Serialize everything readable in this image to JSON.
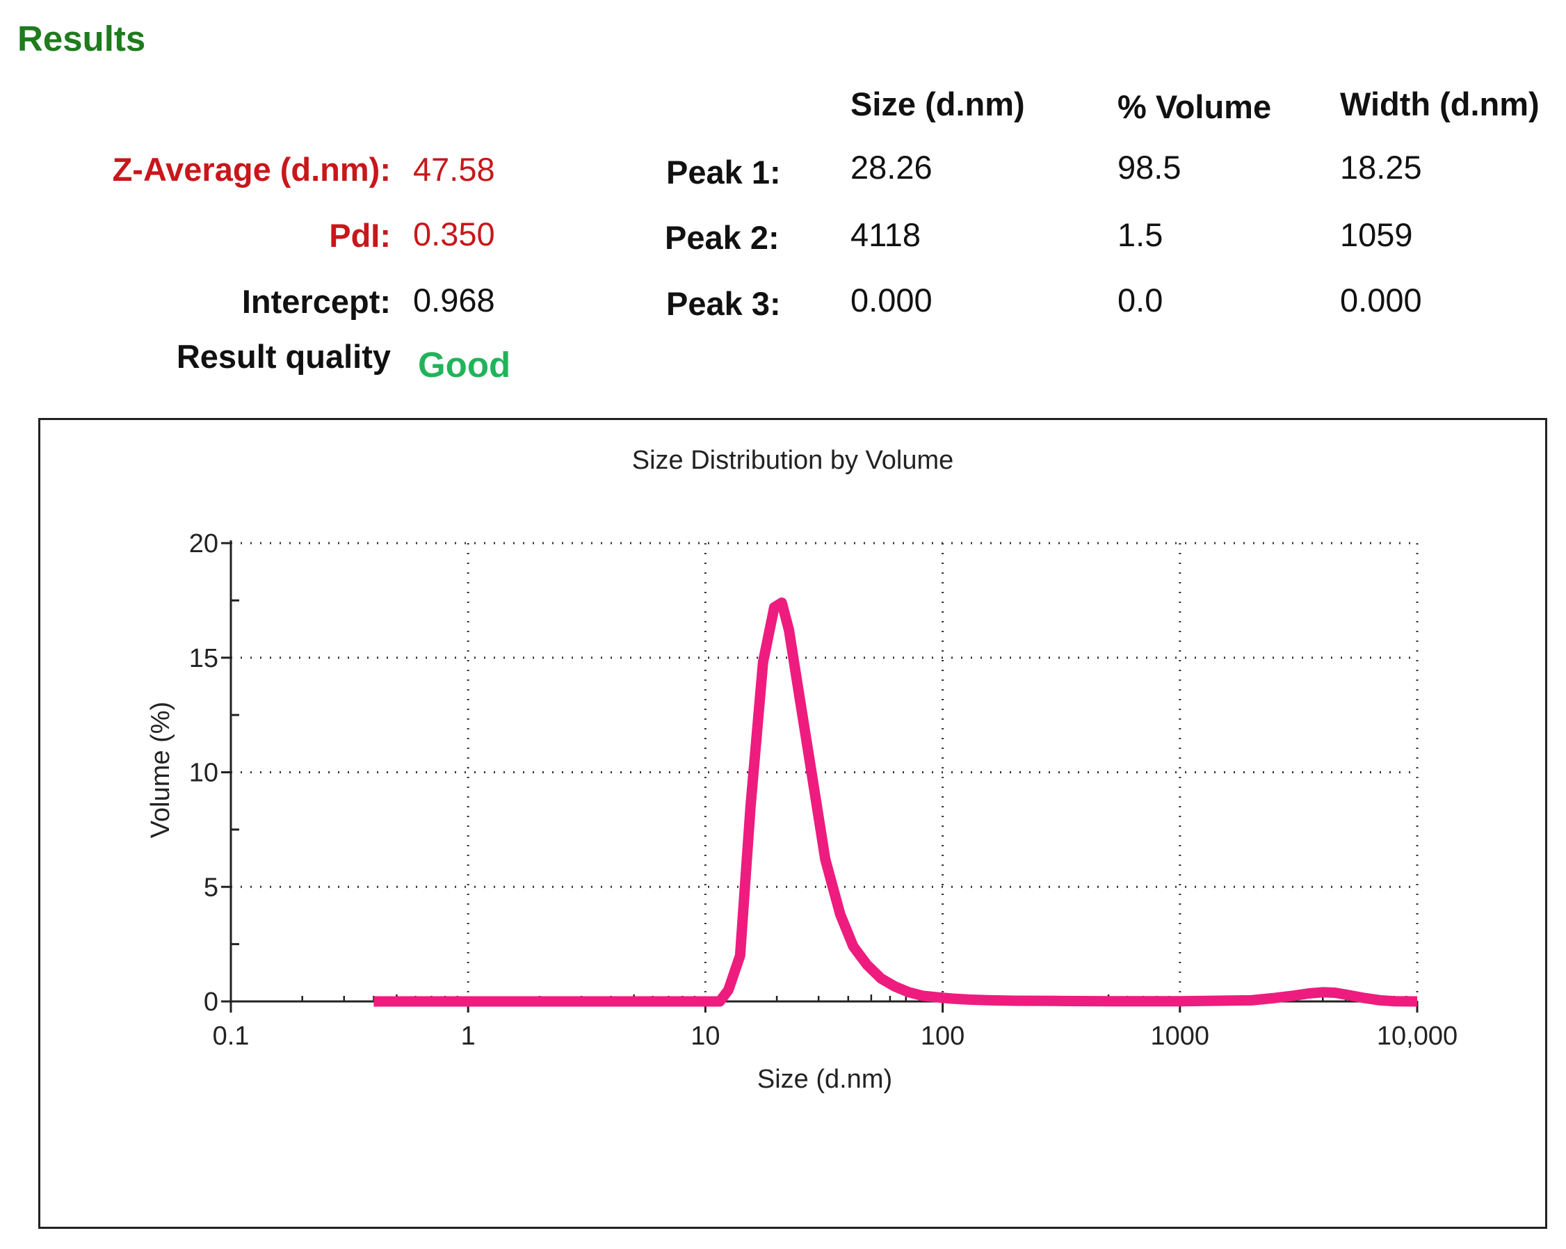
{
  "results": {
    "title": "Results",
    "left": [
      {
        "label": "Z-Average (d.nm):",
        "value": "47.58",
        "color": "#c8171b"
      },
      {
        "label": "PdI:",
        "value": "0.350",
        "color": "#c8171b"
      },
      {
        "label": "Intercept:",
        "value": "0.968",
        "color": "#111111"
      },
      {
        "label": "Result quality",
        "value": "Good",
        "color": "#22b35a"
      }
    ],
    "table": {
      "headers": [
        "Size (d.nm)",
        "% Volume",
        "Width (d.nm)"
      ],
      "rows": [
        {
          "label": "Peak 1:",
          "size": "28.26",
          "volume": "98.5",
          "width": "18.25"
        },
        {
          "label": "Peak 2:",
          "size": "4118",
          "volume": "1.5",
          "width": "1059"
        },
        {
          "label": "Peak 3:",
          "size": "0.000",
          "volume": "0.0",
          "width": "0.000"
        }
      ]
    }
  },
  "chart_data": {
    "type": "line",
    "title": "Size Distribution by Volume",
    "xlabel": "Size (d.nm)",
    "ylabel": "Volume (%)",
    "x_scale": "log",
    "xlim": [
      0.1,
      10000
    ],
    "ylim": [
      0,
      20
    ],
    "x_ticks": [
      {
        "value": 0.1,
        "label": "0.1"
      },
      {
        "value": 1,
        "label": "1"
      },
      {
        "value": 10,
        "label": "10"
      },
      {
        "value": 100,
        "label": "100"
      },
      {
        "value": 1000,
        "label": "1000"
      },
      {
        "value": 10000,
        "label": "10,000"
      }
    ],
    "y_ticks": [
      {
        "value": 0,
        "label": "0"
      },
      {
        "value": 5,
        "label": "5"
      },
      {
        "value": 10,
        "label": "10"
      },
      {
        "value": 15,
        "label": "15"
      },
      {
        "value": 20,
        "label": "20"
      }
    ],
    "grid": true,
    "line_color": "#ee1c7e",
    "series": [
      {
        "x": [
          0.4,
          1,
          3,
          8,
          11.5,
          12.5,
          14,
          15.5,
          17.5,
          19.5,
          21,
          22.5,
          25,
          28,
          32,
          37,
          42,
          48,
          55,
          63,
          72,
          82,
          95,
          110,
          130,
          160,
          200,
          300,
          500,
          1000,
          2000,
          2500,
          3000,
          3500,
          4000,
          4500,
          5000,
          6000,
          7000,
          8000,
          10000
        ],
        "y": [
          0,
          0,
          0,
          0,
          0,
          0.5,
          2,
          8.5,
          14.8,
          17.2,
          17.4,
          16.2,
          13.2,
          10,
          6.2,
          3.8,
          2.4,
          1.6,
          1.0,
          0.65,
          0.4,
          0.25,
          0.18,
          0.12,
          0.08,
          0.05,
          0.03,
          0.02,
          0.01,
          0.01,
          0.05,
          0.15,
          0.25,
          0.35,
          0.4,
          0.38,
          0.3,
          0.15,
          0.05,
          0.01,
          0.0
        ]
      }
    ]
  }
}
